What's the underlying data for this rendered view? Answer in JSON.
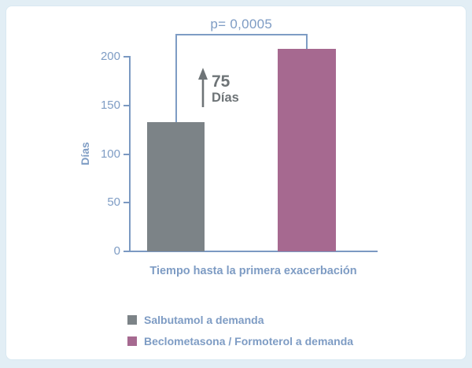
{
  "colors": {
    "background": "#e2eef5",
    "panel": "#ffffff",
    "axis_blue": "#7b99c2",
    "text_blue": "#7e9cc4",
    "annotation_gray": "#6e7477",
    "bar_gray": "#7c8387",
    "bar_pink": "#a66990"
  },
  "annotation": {
    "p_label": "p= 0,0005",
    "diff_value": "75",
    "diff_unit": "Días"
  },
  "chart_data": {
    "type": "bar",
    "title": "",
    "xlabel": "Tiempo hasta la primera exacerbación",
    "ylabel": "Días",
    "ylim": [
      0,
      200
    ],
    "yticks": [
      0,
      50,
      100,
      150,
      200
    ],
    "grid": false,
    "legend_position": "bottom",
    "categories": [
      "Salbutamol a demanda",
      "Beclometasona / Formoterol a demanda"
    ],
    "series": [
      {
        "name": "Salbutamol a demanda",
        "value": 133,
        "color": "#7c8387"
      },
      {
        "name": "Beclometasona / Formoterol a demanda",
        "value": 208,
        "color": "#a66990"
      }
    ],
    "annotations": [
      {
        "type": "significance-bracket",
        "text": "p= 0,0005",
        "between": [
          0,
          1
        ]
      },
      {
        "type": "difference-arrow",
        "text": "75 Días"
      }
    ]
  },
  "legend": {
    "items": [
      {
        "label": "Salbutamol a demanda",
        "color": "#7c8387"
      },
      {
        "label": "Beclometasona / Formoterol a demanda",
        "color": "#a66990"
      }
    ]
  }
}
